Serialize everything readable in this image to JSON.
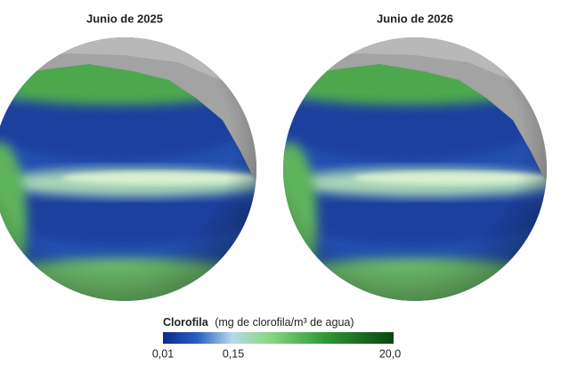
{
  "panels": [
    {
      "title": "Junio de 2025"
    },
    {
      "title": "Junio de 2026"
    }
  ],
  "legend": {
    "title": "Clorofila",
    "unit": "(mg de clorofila/m³ de agua)",
    "ticks": [
      "0,01",
      "0,15",
      "20,0"
    ]
  }
}
